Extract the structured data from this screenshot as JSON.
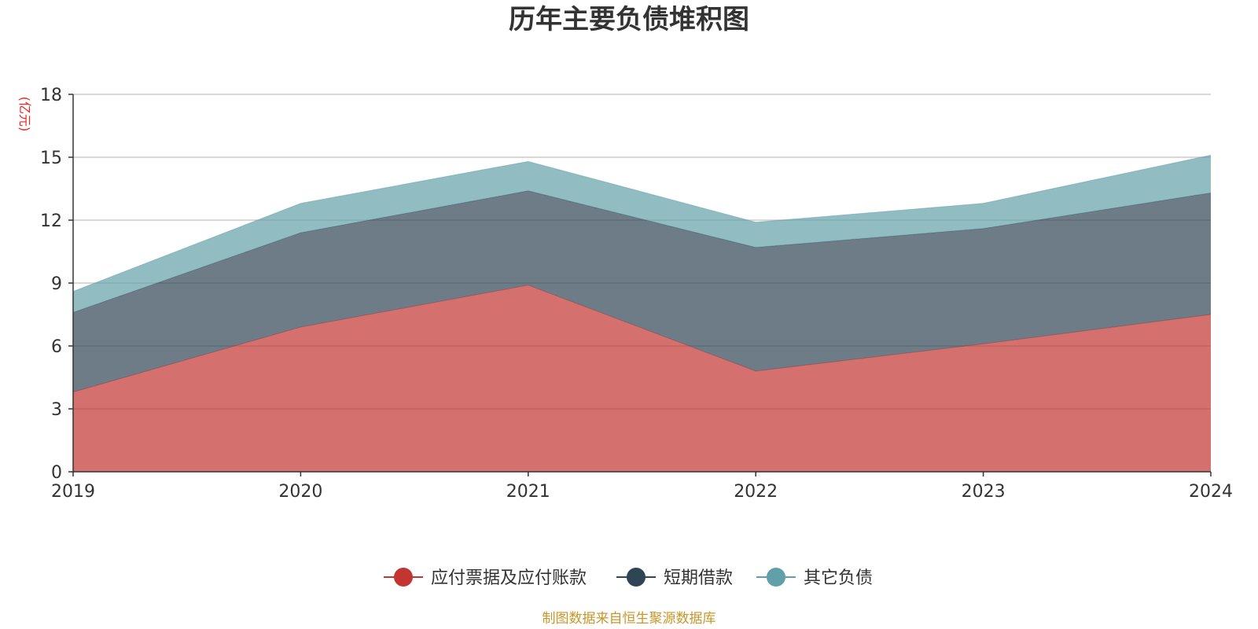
{
  "chart_data": {
    "type": "area",
    "stacked": true,
    "title": "历年主要负债堆积图",
    "unit_label": "(亿元)",
    "categories": [
      "2019",
      "2020",
      "2021",
      "2022",
      "2023",
      "2024"
    ],
    "ylim": [
      0,
      18
    ],
    "yticks": [
      "0",
      "3",
      "6",
      "9",
      "12",
      "15",
      "18"
    ],
    "grid": true,
    "legend_position": "bottom-center",
    "series": [
      {
        "name": "应付票据及应付账款",
        "color": "#c23531",
        "values": [
          3.8,
          6.9,
          8.9,
          4.8,
          6.1,
          7.5
        ]
      },
      {
        "name": "短期借款",
        "color": "#2f4554",
        "values": [
          3.8,
          4.5,
          4.5,
          5.9,
          5.5,
          5.8
        ]
      },
      {
        "name": "其它负债",
        "color": "#61a0a8",
        "values": [
          1.0,
          1.4,
          1.4,
          1.2,
          1.2,
          1.8
        ]
      }
    ],
    "source": "制图数据来自恒生聚源数据库"
  }
}
